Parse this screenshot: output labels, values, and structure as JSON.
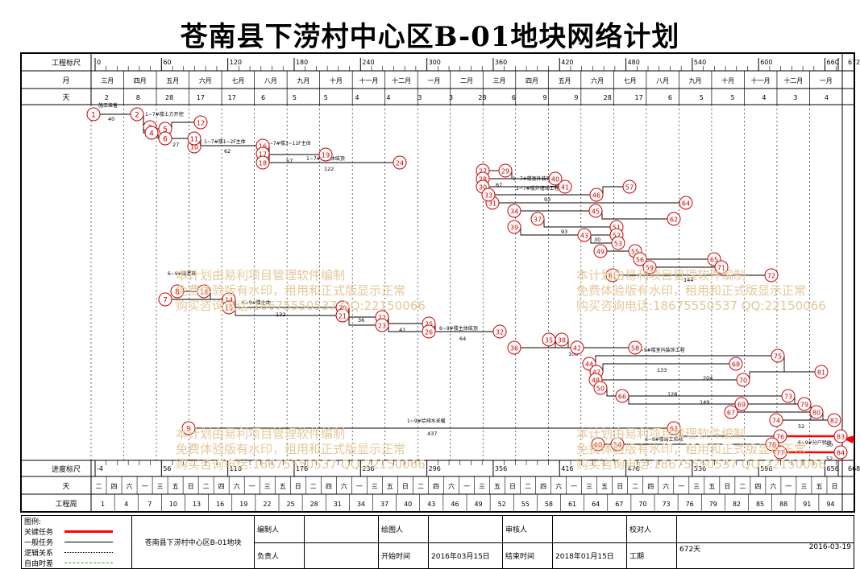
{
  "title": "苍南县下涝村中心区B-01地块网络计划",
  "scale": {
    "top_label": "工程标尺",
    "bottom_label": "进度标尺",
    "month_label": "月",
    "day_label": "天",
    "week_label": "天",
    "period_label": "工程周",
    "top_ticks": [
      "0",
      "60",
      "120",
      "180",
      "240",
      "300",
      "360",
      "420",
      "480",
      "540",
      "600",
      "660",
      "672"
    ],
    "bottom_ticks": [
      "-4",
      "56",
      "116",
      "176",
      "236",
      "296",
      "356",
      "416",
      "476",
      "536",
      "596",
      "656",
      "668"
    ],
    "months": [
      "三月",
      "四月",
      "五月",
      "六月",
      "七月",
      "八月",
      "九月",
      "十月",
      "十一月",
      "十二月",
      "一月",
      "二月",
      "三月",
      "四月",
      "五月",
      "六月",
      "七月",
      "八月",
      "九月",
      "十月",
      "十一月",
      "十二月",
      "一月"
    ],
    "days": [
      "2",
      "8",
      "28",
      "17",
      "17",
      "6",
      "5",
      "5",
      "4",
      "4",
      "3",
      "3",
      "28",
      "6",
      "9",
      "9",
      "28",
      "17",
      "6",
      "5",
      "5",
      "4",
      "3",
      "4"
    ],
    "weekdays": [
      "二",
      "四",
      "六",
      "一",
      "三",
      "五",
      "日",
      "二",
      "四",
      "六",
      "一",
      "三",
      "五",
      "日",
      "二",
      "四",
      "六",
      "一",
      "三",
      "五",
      "日",
      "二",
      "四",
      "六",
      "一",
      "三",
      "五",
      "日",
      "二",
      "四",
      "六",
      "一",
      "三",
      "五",
      "日",
      "二",
      "四",
      "六",
      "一",
      "三",
      "五",
      "日",
      "二",
      "四",
      "六",
      "一",
      "三",
      "五",
      "日"
    ],
    "weeks": [
      "1",
      "4",
      "7",
      "10",
      "13",
      "16",
      "19",
      "22",
      "25",
      "28",
      "31",
      "34",
      "37",
      "40",
      "43",
      "46",
      "49",
      "52",
      "55",
      "58",
      "61",
      "64",
      "67",
      "70",
      "73",
      "76",
      "79",
      "82",
      "85",
      "88",
      "91",
      "94"
    ]
  },
  "network": {
    "nodes": [
      "1",
      "2",
      "3",
      "4",
      "5",
      "6",
      "7",
      "8",
      "9",
      "10",
      "11",
      "12",
      "13",
      "14",
      "15",
      "16",
      "17",
      "18",
      "19",
      "20",
      "21",
      "22",
      "23",
      "24",
      "25",
      "26",
      "27",
      "28",
      "29",
      "30",
      "31",
      "32",
      "33",
      "34",
      "35",
      "36",
      "37",
      "38",
      "39",
      "40",
      "41",
      "42",
      "43",
      "44",
      "45",
      "46",
      "47",
      "48",
      "49",
      "50",
      "51",
      "52",
      "53",
      "54",
      "55",
      "56",
      "57",
      "58",
      "59",
      "60",
      "61",
      "62",
      "63",
      "64",
      "65",
      "66",
      "67",
      "68",
      "69",
      "70",
      "71",
      "72",
      "73",
      "74",
      "75",
      "76",
      "77",
      "78",
      "79",
      "80",
      "81",
      "82",
      "83",
      "84"
    ],
    "task_labels": {
      "t1": "施工准备",
      "t2": "1~7#楼土方开挖",
      "t3": "1~7#楼1~2F主体",
      "t4": "1~7#楼3~11F主体",
      "t5": "1~7#楼主体结顶",
      "t6": "1~7#楼室外装饰工程",
      "t7": "1~7#楼外墙饰工程",
      "t8": "6~9#楼基础",
      "t9": "6~9#楼主体",
      "t10": "6~9#楼主体结顶",
      "t11": "6~9#楼室内装饰工程",
      "t12": "1~9#给排水采暖",
      "t13": "6~9#楼竣工验收",
      "t14": "6~9#分户验收"
    },
    "durations": [
      "40",
      "27",
      "62",
      "57",
      "122",
      "93",
      "67",
      "93",
      "30",
      "132",
      "36",
      "41",
      "64",
      "108",
      "133",
      "204",
      "128",
      "149",
      "437",
      "144",
      "52",
      "50",
      "52"
    ]
  },
  "watermark": {
    "line1": "本计划由易利项目管理软件编制",
    "line2": "免费体验版有水印，租用和正式版显示正常",
    "line3": "购买咨询电话:18675550537 QQ:22150066"
  },
  "legend": {
    "title": "图例:",
    "items": [
      "关键任务",
      "一般任务",
      "逻辑关系",
      "自由时差"
    ],
    "project_name": "苍南县下涝村中心区B-01地块",
    "editor_label": "编制人",
    "drawer_label": "绘图人",
    "reviewer_label": "审核人",
    "checker_label": "校对人",
    "owner_label": "负责人",
    "start_label": "开始时间",
    "start_value": "2016年03月15日",
    "end_label": "结束时间",
    "end_value": "2018年01月15日",
    "duration_label": "工期",
    "duration_value": "672天",
    "date_value": "2016-03-19"
  },
  "colors": {
    "critical": "#ff0000",
    "node_border": "#cc0000",
    "normal": "#000000"
  }
}
